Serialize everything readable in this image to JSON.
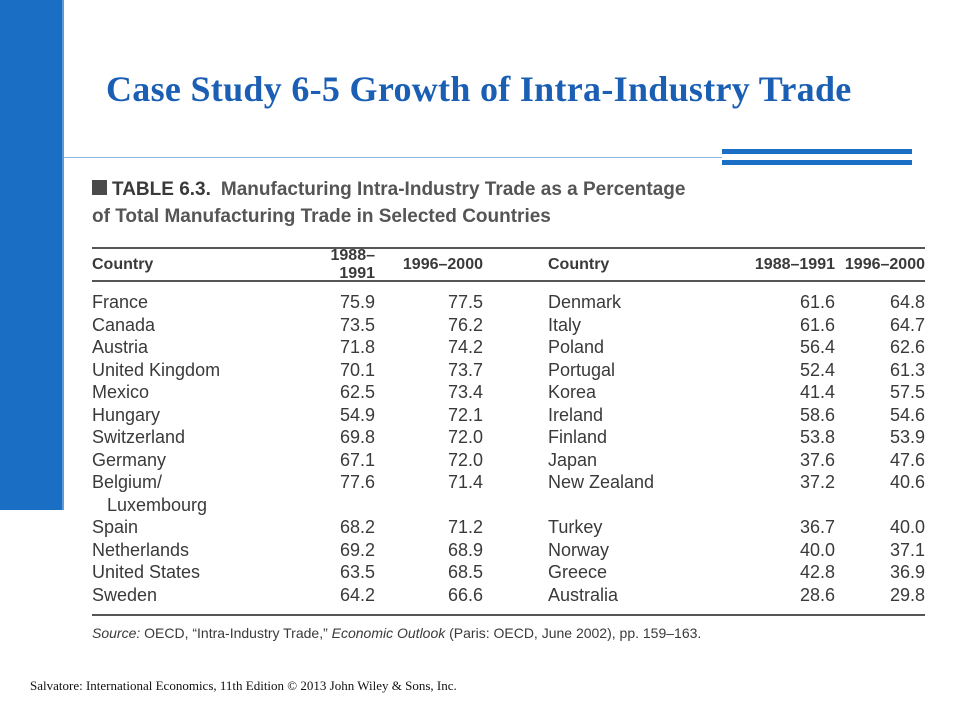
{
  "slide": {
    "title": "Case Study 6-5  Growth of Intra-Industry Trade",
    "footer": "Salvatore: International Economics, 11th Edition  © 2013 John Wiley & Sons, Inc."
  },
  "colors": {
    "accent": "#1a6fc4",
    "title": "#1a5fb4",
    "text": "#3a3a3a"
  },
  "table": {
    "label": "TABLE 6.3.",
    "title_line1": "Manufacturing Intra-Industry Trade as a Percentage",
    "title_line2": "of Total Manufacturing Trade in Selected Countries",
    "columns": [
      "Country",
      "1988–1991",
      "1996–2000",
      "Country",
      "1988–1991",
      "1996–2000"
    ],
    "rows": [
      [
        "France",
        "75.9",
        "77.5",
        "Denmark",
        "61.6",
        "64.8"
      ],
      [
        "Canada",
        "73.5",
        "76.2",
        "Italy",
        "61.6",
        "64.7"
      ],
      [
        "Austria",
        "71.8",
        "74.2",
        "Poland",
        "56.4",
        "62.6"
      ],
      [
        "United Kingdom",
        "70.1",
        "73.7",
        "Portugal",
        "52.4",
        "61.3"
      ],
      [
        "Mexico",
        "62.5",
        "73.4",
        "Korea",
        "41.4",
        "57.5"
      ],
      [
        "Hungary",
        "54.9",
        "72.1",
        "Ireland",
        "58.6",
        "54.6"
      ],
      [
        "Switzerland",
        "69.8",
        "72.0",
        "Finland",
        "53.8",
        "53.9"
      ],
      [
        "Germany",
        "67.1",
        "72.0",
        "Japan",
        "37.6",
        "47.6"
      ],
      [
        "Belgium/",
        "77.6",
        "71.4",
        "New Zealand",
        "37.2",
        "40.6"
      ],
      [
        "   Luxembourg",
        "",
        "",
        "",
        "",
        ""
      ],
      [
        "Spain",
        "68.2",
        "71.2",
        "Turkey",
        "36.7",
        "40.0"
      ],
      [
        "Netherlands",
        "69.2",
        "68.9",
        "Norway",
        "40.0",
        "37.1"
      ],
      [
        "United States",
        "63.5",
        "68.5",
        "Greece",
        "42.8",
        "36.9"
      ],
      [
        "Sweden",
        "64.2",
        "66.6",
        "Australia",
        "28.6",
        "29.8"
      ]
    ],
    "source": {
      "prefix": "Source:",
      "part1": " OECD, “Intra-Industry Trade,” ",
      "italic": "Economic Outlook",
      "part2": " (Paris: OECD, June 2002), pp. 159–163."
    }
  }
}
